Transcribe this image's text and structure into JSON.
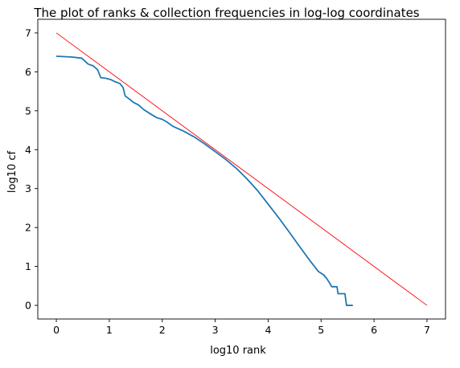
{
  "chart_data": {
    "type": "line",
    "title": "The plot of ranks & collection frequencies in log-log coordinates",
    "xlabel": "log10 rank",
    "ylabel": "log10 cf",
    "xlim": [
      -0.35,
      7.35
    ],
    "ylim": [
      -0.35,
      7.35
    ],
    "xticks": [
      "0",
      "1",
      "2",
      "3",
      "4",
      "5",
      "6",
      "7"
    ],
    "yticks": [
      "0",
      "1",
      "2",
      "3",
      "4",
      "5",
      "6",
      "7"
    ],
    "grid": false,
    "legend": "none",
    "series": [
      {
        "color": "#1f77b4",
        "points": [
          [
            0.0,
            6.4
          ],
          [
            0.3,
            6.38
          ],
          [
            0.48,
            6.35
          ],
          [
            0.6,
            6.2
          ],
          [
            0.7,
            6.15
          ],
          [
            0.78,
            6.05
          ],
          [
            0.84,
            5.85
          ],
          [
            0.95,
            5.83
          ],
          [
            1.03,
            5.8
          ],
          [
            1.1,
            5.75
          ],
          [
            1.2,
            5.7
          ],
          [
            1.26,
            5.6
          ],
          [
            1.3,
            5.38
          ],
          [
            1.38,
            5.3
          ],
          [
            1.45,
            5.22
          ],
          [
            1.55,
            5.15
          ],
          [
            1.65,
            5.03
          ],
          [
            1.8,
            4.9
          ],
          [
            1.9,
            4.82
          ],
          [
            2.0,
            4.78
          ],
          [
            2.1,
            4.7
          ],
          [
            2.2,
            4.6
          ],
          [
            2.4,
            4.48
          ],
          [
            2.6,
            4.33
          ],
          [
            2.8,
            4.15
          ],
          [
            3.0,
            3.95
          ],
          [
            3.2,
            3.75
          ],
          [
            3.4,
            3.52
          ],
          [
            3.6,
            3.25
          ],
          [
            3.8,
            2.95
          ],
          [
            4.0,
            2.6
          ],
          [
            4.2,
            2.25
          ],
          [
            4.4,
            1.88
          ],
          [
            4.6,
            1.5
          ],
          [
            4.8,
            1.13
          ],
          [
            4.95,
            0.87
          ],
          [
            5.05,
            0.78
          ],
          [
            5.1,
            0.7
          ],
          [
            5.15,
            0.6
          ],
          [
            5.2,
            0.48
          ],
          [
            5.3,
            0.48
          ],
          [
            5.32,
            0.3
          ],
          [
            5.45,
            0.3
          ],
          [
            5.48,
            0.0
          ],
          [
            5.6,
            0.0
          ]
        ]
      },
      {
        "color": "#ff0000",
        "points": [
          [
            0,
            7
          ],
          [
            7,
            0
          ]
        ]
      }
    ]
  }
}
